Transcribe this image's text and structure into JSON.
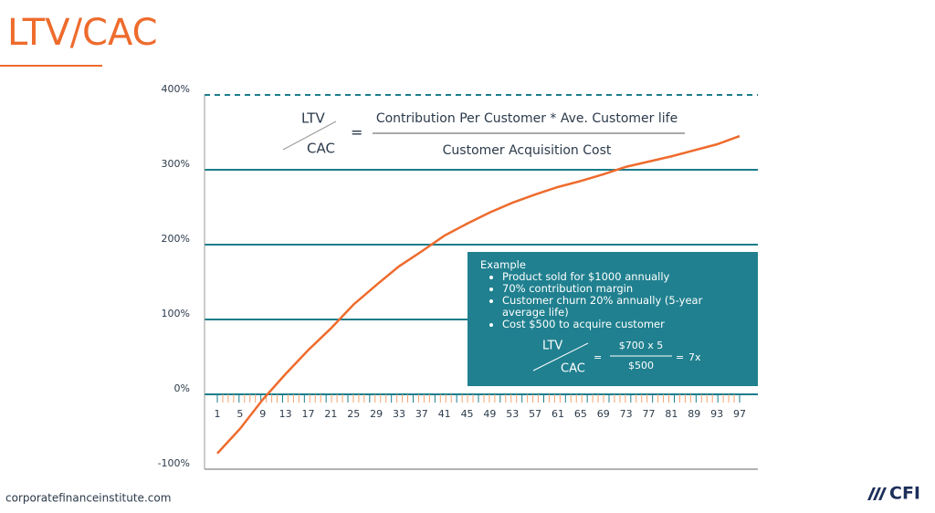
{
  "slide": {
    "title": "LTV/CAC",
    "formula": {
      "lhs_top": "LTV",
      "lhs_bottom": "CAC",
      "equals": "=",
      "numerator": "Contribution Per Customer * Ave. Customer life",
      "denominator": "Customer Acquisition Cost"
    },
    "example": {
      "heading": "Example",
      "bullets": [
        "Product sold for $1000 annually",
        "70% contribution margin",
        "Customer churn 20% annually (5-year average life)",
        "Cost $500 to acquire customer"
      ],
      "formula": {
        "lhs_top": "LTV",
        "lhs_bottom": "CAC",
        "equals": "=",
        "numerator": "$700 x 5",
        "denominator": "$500",
        "result_equals": "=",
        "result": "7x"
      }
    },
    "footer": "corporatefinanceinstitute.com",
    "logo": "CFI"
  },
  "chart_data": {
    "type": "line",
    "categories": [
      "1",
      "5",
      "9",
      "13",
      "17",
      "21",
      "25",
      "29",
      "33",
      "37",
      "41",
      "45",
      "49",
      "53",
      "57",
      "61",
      "65",
      "69",
      "73",
      "77",
      "81",
      "89",
      "93",
      "97"
    ],
    "series": [
      {
        "name": "LTV/CAC",
        "color": "#ee6b2d",
        "values": [
          -79,
          -46,
          -7,
          27,
          59,
          88,
          120,
          146,
          171,
          191,
          212,
          228,
          243,
          256,
          267,
          277,
          285,
          294,
          304,
          311,
          318,
          326,
          334,
          345
        ]
      }
    ],
    "ylim": [
      -100,
      400
    ],
    "yticks": [
      {
        "value": -100,
        "label": "-100%"
      },
      {
        "value": 0,
        "label": "0%"
      },
      {
        "value": 100,
        "label": "100%"
      },
      {
        "value": 200,
        "label": "200%"
      },
      {
        "value": 300,
        "label": "300%"
      },
      {
        "value": 400,
        "label": "400%"
      }
    ],
    "grid": true
  }
}
